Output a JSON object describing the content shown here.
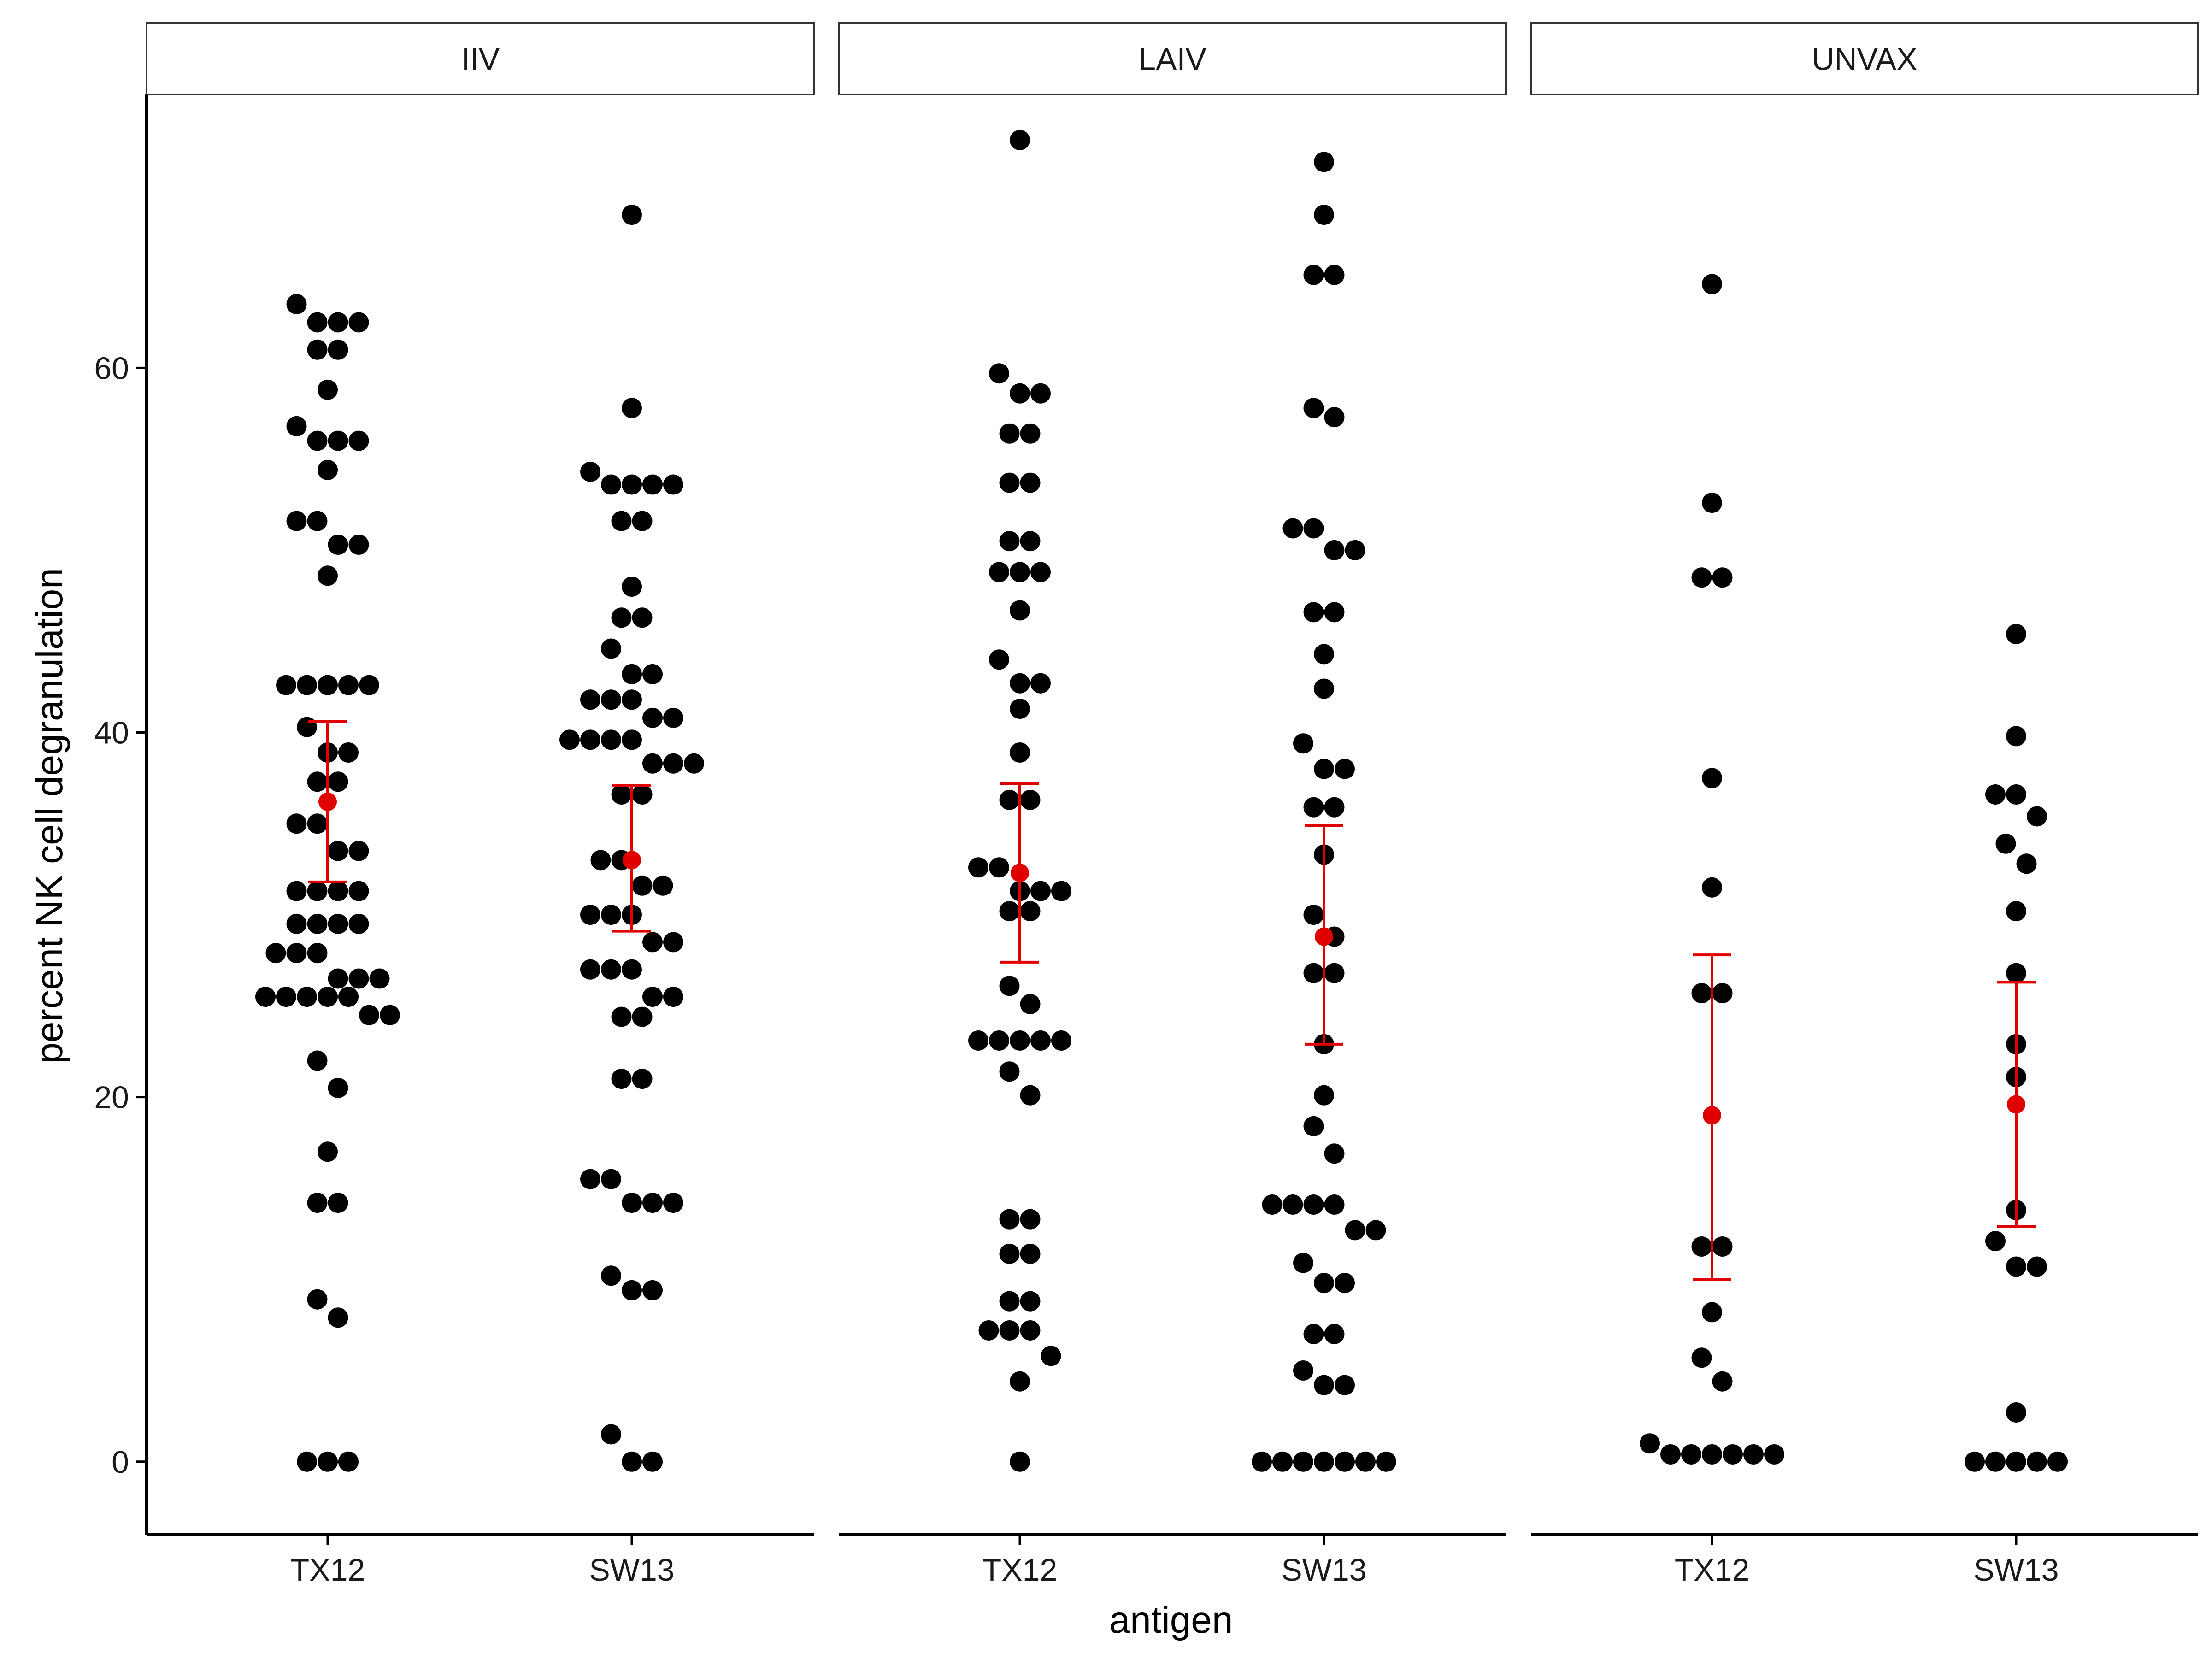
{
  "chart_data": {
    "type": "scatter",
    "subtype": "faceted dot plot with mean and confidence interval",
    "xlabel": "antigen",
    "ylabel": "percent NK cell degranulation",
    "ylim": [
      -4,
      75
    ],
    "yticks": [
      0,
      20,
      40,
      60
    ],
    "grid": false,
    "colors": {
      "points": "#000000",
      "summary": "#e00000",
      "strip_border": "#333333",
      "axis": "#000000"
    },
    "categories": [
      "TX12",
      "SW13"
    ],
    "panels": [
      {
        "facet": "IIV",
        "groups": [
          {
            "antigen": "TX12",
            "values": [
              63.5,
              62.5,
              62.5,
              62.5,
              61.0,
              61.0,
              58.8,
              56.8,
              56.0,
              56.0,
              56.0,
              54.4,
              51.6,
              51.6,
              50.3,
              50.3,
              48.6,
              42.6,
              42.6,
              42.6,
              42.6,
              42.6,
              40.3,
              38.9,
              38.9,
              37.3,
              37.3,
              35.0,
              35.0,
              33.5,
              33.5,
              31.3,
              31.3,
              31.3,
              31.3,
              29.5,
              29.5,
              29.5,
              29.5,
              27.9,
              27.9,
              27.9,
              26.5,
              26.5,
              26.5,
              25.5,
              25.5,
              25.5,
              25.5,
              25.5,
              24.5,
              24.5,
              22.0,
              20.5,
              17.0,
              14.2,
              14.2,
              8.9,
              7.9,
              0,
              0,
              0
            ],
            "mean": 36.2,
            "ci": [
              31.8,
              40.6
            ]
          },
          {
            "antigen": "SW13",
            "values": [
              68.4,
              57.8,
              54.3,
              53.6,
              53.6,
              53.6,
              53.6,
              51.6,
              51.6,
              48.0,
              46.3,
              46.3,
              44.6,
              43.2,
              43.2,
              41.8,
              41.8,
              41.8,
              40.8,
              40.8,
              39.6,
              39.6,
              39.6,
              39.6,
              38.3,
              38.3,
              38.3,
              36.6,
              36.6,
              33.0,
              33.0,
              31.6,
              31.6,
              30.0,
              30.0,
              30.0,
              28.5,
              28.5,
              27.0,
              27.0,
              27.0,
              25.5,
              25.5,
              24.4,
              24.4,
              21.0,
              21.0,
              15.5,
              15.5,
              14.2,
              14.2,
              14.2,
              10.2,
              9.4,
              9.4,
              1.5,
              0,
              0
            ],
            "mean": 33.0,
            "ci": [
              29.1,
              37.1
            ]
          }
        ]
      },
      {
        "facet": "LAIV",
        "groups": [
          {
            "antigen": "TX12",
            "values": [
              72.5,
              59.7,
              58.6,
              58.6,
              56.4,
              56.4,
              53.7,
              53.7,
              50.5,
              50.5,
              48.8,
              48.8,
              48.8,
              46.7,
              44.0,
              42.7,
              42.7,
              41.3,
              38.9,
              36.3,
              36.3,
              32.6,
              32.6,
              31.3,
              31.3,
              31.3,
              30.2,
              30.2,
              26.1,
              25.1,
              23.1,
              23.1,
              23.1,
              23.1,
              23.1,
              21.4,
              20.1,
              13.3,
              13.3,
              11.4,
              11.4,
              8.8,
              8.8,
              7.2,
              7.2,
              7.2,
              5.8,
              4.4,
              0
            ],
            "mean": 32.3,
            "ci": [
              27.4,
              37.2
            ]
          },
          {
            "antigen": "SW13",
            "values": [
              71.3,
              68.4,
              65.1,
              65.1,
              57.8,
              57.3,
              51.2,
              51.2,
              50.0,
              50.0,
              46.6,
              46.6,
              44.3,
              42.4,
              39.4,
              38.0,
              38.0,
              35.9,
              35.9,
              33.3,
              30.0,
              28.8,
              26.8,
              26.8,
              22.9,
              20.1,
              18.4,
              16.9,
              14.1,
              14.1,
              14.1,
              14.1,
              12.7,
              12.7,
              10.9,
              9.8,
              9.8,
              7.0,
              7.0,
              5.0,
              4.2,
              4.2,
              0,
              0,
              0,
              0,
              0,
              0,
              0
            ],
            "mean": 28.8,
            "ci": [
              22.9,
              34.9
            ]
          }
        ]
      },
      {
        "facet": "UNVAX",
        "groups": [
          {
            "antigen": "TX12",
            "values": [
              64.6,
              52.6,
              48.5,
              48.5,
              37.5,
              31.5,
              25.7,
              25.7,
              11.8,
              11.8,
              8.2,
              5.7,
              4.4,
              1.0,
              0.4,
              0.4,
              0.4,
              0.4,
              0.4,
              0.4
            ],
            "mean": 19.0,
            "ci": [
              10.0,
              27.8
            ]
          },
          {
            "antigen": "SW13",
            "values": [
              45.4,
              39.8,
              36.6,
              36.6,
              35.4,
              33.9,
              32.8,
              30.2,
              26.8,
              22.9,
              21.1,
              13.8,
              12.1,
              10.7,
              10.7,
              2.7,
              0,
              0,
              0,
              0,
              0
            ],
            "mean": 19.6,
            "ci": [
              12.9,
              26.3
            ]
          }
        ]
      }
    ]
  }
}
